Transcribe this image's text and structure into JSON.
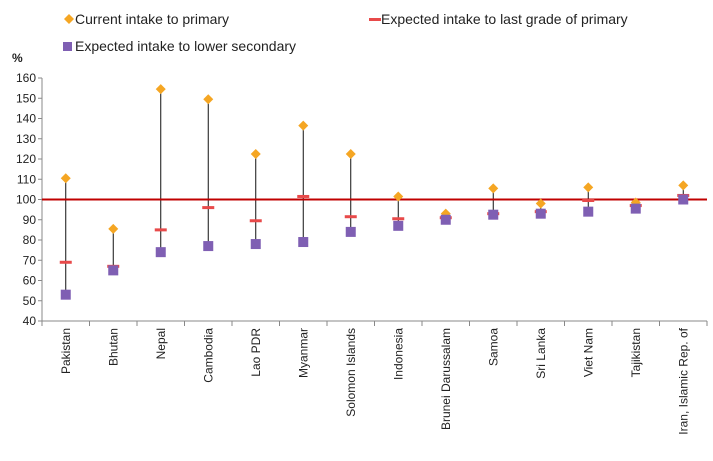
{
  "chart_data": {
    "type": "scatter",
    "y_unit_label": "%",
    "ylim": [
      40,
      160
    ],
    "y_ticks": [
      40,
      50,
      60,
      70,
      80,
      90,
      100,
      110,
      120,
      130,
      140,
      150,
      160
    ],
    "grid": false,
    "legend_position": "top",
    "reference_line": {
      "value": 100,
      "color": "#c00000"
    },
    "categories": [
      "Pakistan",
      "Bhutan",
      "Nepal",
      "Cambodia",
      "Lao PDR",
      "Myanmar",
      "Solomon Islands",
      "Indonesia",
      "Brunei Darussalam",
      "Samoa",
      "Sri Lanka",
      "Viet Nam",
      "Tajikistan",
      "Iran, Islamic Rep. of"
    ],
    "series": [
      {
        "name": "Current intake to primary",
        "marker": "diamond",
        "color": "#f5a623",
        "values": [
          110.5,
          85.5,
          154.5,
          149.5,
          122.5,
          136.5,
          122.5,
          101.5,
          93,
          105.5,
          98,
          106,
          98.5,
          107
        ]
      },
      {
        "name": "Expected intake to last grade of primary",
        "marker": "dash",
        "color": "#e84a4a",
        "values": [
          69,
          67,
          85,
          96,
          89.5,
          101.5,
          91.5,
          90.5,
          91,
          93,
          94,
          99.5,
          97,
          102
        ]
      },
      {
        "name": "Expected intake to lower secondary",
        "marker": "square",
        "color": "#7f5fb3",
        "values": [
          53,
          65,
          74,
          77,
          78,
          79,
          84,
          87,
          90,
          92.5,
          93,
          94,
          95.5,
          100
        ]
      }
    ]
  }
}
